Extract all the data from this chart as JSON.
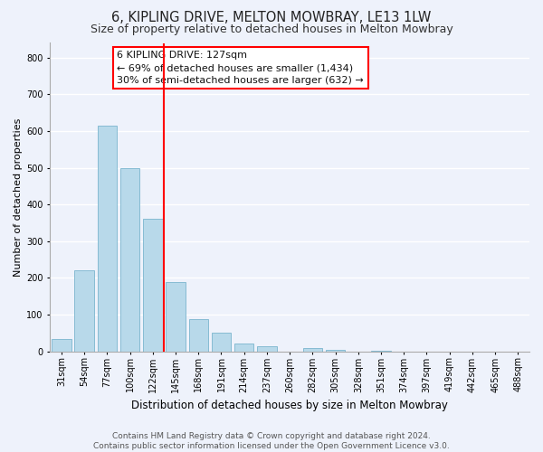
{
  "title": "6, KIPLING DRIVE, MELTON MOWBRAY, LE13 1LW",
  "subtitle": "Size of property relative to detached houses in Melton Mowbray",
  "xlabel": "Distribution of detached houses by size in Melton Mowbray",
  "ylabel": "Number of detached properties",
  "bar_labels": [
    "31sqm",
    "54sqm",
    "77sqm",
    "100sqm",
    "122sqm",
    "145sqm",
    "168sqm",
    "191sqm",
    "214sqm",
    "237sqm",
    "260sqm",
    "282sqm",
    "305sqm",
    "328sqm",
    "351sqm",
    "374sqm",
    "397sqm",
    "419sqm",
    "442sqm",
    "465sqm",
    "488sqm"
  ],
  "bar_values": [
    33,
    222,
    615,
    500,
    360,
    190,
    88,
    50,
    22,
    14,
    0,
    10,
    5,
    0,
    2,
    0,
    0,
    0,
    0,
    0,
    0
  ],
  "bar_color": "#b8d9ea",
  "bar_edge_color": "#7ab5ce",
  "vline_color": "red",
  "vline_index": 4.5,
  "annotation_line1": "6 KIPLING DRIVE: 127sqm",
  "annotation_line2": "← 69% of detached houses are smaller (1,434)",
  "annotation_line3": "30% of semi-detached houses are larger (632) →",
  "ylim": [
    0,
    840
  ],
  "yticks": [
    0,
    100,
    200,
    300,
    400,
    500,
    600,
    700,
    800
  ],
  "footnote_line1": "Contains HM Land Registry data © Crown copyright and database right 2024.",
  "footnote_line2": "Contains public sector information licensed under the Open Government Licence v3.0.",
  "bg_color": "#eef2fb",
  "grid_color": "#ffffff",
  "title_fontsize": 10.5,
  "subtitle_fontsize": 9,
  "xlabel_fontsize": 8.5,
  "ylabel_fontsize": 8,
  "tick_fontsize": 7,
  "annotation_fontsize": 8,
  "footnote_fontsize": 6.5
}
